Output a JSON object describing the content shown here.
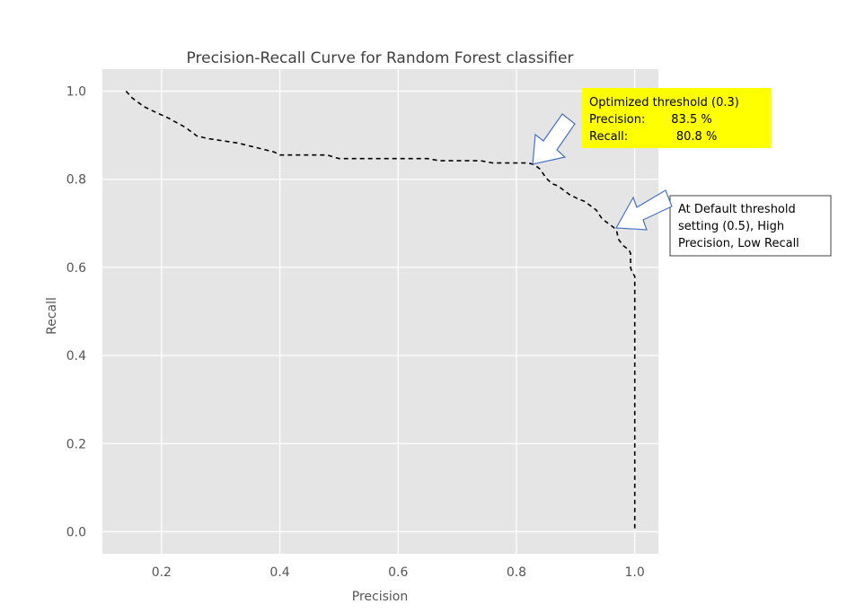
{
  "chart_data": {
    "type": "line",
    "title": "Precision-Recall Curve for Random Forest classifier",
    "xlabel": "Precision",
    "ylabel": "Recall",
    "xlim": [
      0.1,
      1.04
    ],
    "ylim": [
      -0.05,
      1.05
    ],
    "xticks": [
      "0.2",
      "0.4",
      "0.6",
      "0.8",
      "1.0"
    ],
    "yticks": [
      "0.0",
      "0.2",
      "0.4",
      "0.6",
      "0.8",
      "1.0"
    ],
    "grid": true,
    "line_style": "dashed",
    "line_color": "#000000",
    "background": "#e5e5e5",
    "series": [
      {
        "points": [
          [
            0.14,
            1.0
          ],
          [
            0.15,
            0.985
          ],
          [
            0.17,
            0.965
          ],
          [
            0.19,
            0.952
          ],
          [
            0.21,
            0.94
          ],
          [
            0.24,
            0.918
          ],
          [
            0.26,
            0.898
          ],
          [
            0.28,
            0.892
          ],
          [
            0.3,
            0.888
          ],
          [
            0.33,
            0.882
          ],
          [
            0.36,
            0.872
          ],
          [
            0.39,
            0.862
          ],
          [
            0.4,
            0.855
          ],
          [
            0.42,
            0.855
          ],
          [
            0.45,
            0.855
          ],
          [
            0.48,
            0.855
          ],
          [
            0.5,
            0.847
          ],
          [
            0.55,
            0.847
          ],
          [
            0.6,
            0.847
          ],
          [
            0.65,
            0.847
          ],
          [
            0.67,
            0.842
          ],
          [
            0.7,
            0.842
          ],
          [
            0.74,
            0.842
          ],
          [
            0.76,
            0.837
          ],
          [
            0.8,
            0.837
          ],
          [
            0.82,
            0.837
          ],
          [
            0.83,
            0.833
          ],
          [
            0.84,
            0.823
          ],
          [
            0.85,
            0.803
          ],
          [
            0.86,
            0.79
          ],
          [
            0.87,
            0.785
          ],
          [
            0.88,
            0.775
          ],
          [
            0.89,
            0.765
          ],
          [
            0.905,
            0.755
          ],
          [
            0.915,
            0.75
          ],
          [
            0.925,
            0.74
          ],
          [
            0.935,
            0.73
          ],
          [
            0.94,
            0.72
          ],
          [
            0.945,
            0.71
          ],
          [
            0.955,
            0.7
          ],
          [
            0.965,
            0.69
          ],
          [
            0.97,
            0.68
          ],
          [
            0.972,
            0.665
          ],
          [
            0.98,
            0.65
          ],
          [
            0.99,
            0.64
          ],
          [
            0.993,
            0.632
          ],
          [
            0.993,
            0.6
          ],
          [
            0.995,
            0.59
          ],
          [
            1.0,
            0.58
          ],
          [
            1.0,
            0.4
          ],
          [
            1.0,
            0.2
          ],
          [
            1.0,
            0.0
          ]
        ]
      }
    ],
    "annotations": [
      {
        "id": "optimized",
        "lines": [
          "Optimized threshold (0.3)",
          "Precision:       83.5 %",
          "Recall:             80.8 %"
        ],
        "target": [
          0.83,
          0.835
        ],
        "box_fill": "#ffff00",
        "box_border": "none"
      },
      {
        "id": "default",
        "lines": [
          "At Default threshold",
          "setting (0.5), High",
          "Precision, Low Recall"
        ],
        "target": [
          0.97,
          0.69
        ],
        "box_fill": "#ffffff",
        "box_border": "#404040"
      }
    ],
    "arrow_fill": "#ffffff",
    "arrow_stroke": "#4472c4"
  }
}
